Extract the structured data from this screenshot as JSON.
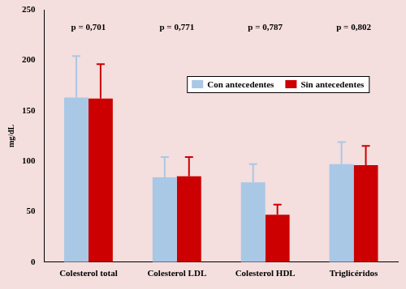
{
  "chart_data": {
    "type": "bar",
    "categories": [
      "Colesterol total",
      "Colesterol LDL",
      "Colesterol HDL",
      "Triglicéridos"
    ],
    "series": [
      {
        "name": "Con antecedentes",
        "color": "#a9c8e6",
        "values": [
          163,
          84,
          79,
          97
        ],
        "errors": [
          41,
          20,
          18,
          22
        ]
      },
      {
        "name": "Sin antecedentes",
        "color": "#cc0000",
        "values": [
          162,
          85,
          47,
          96
        ],
        "errors": [
          34,
          19,
          10,
          19
        ]
      }
    ],
    "y_label": "mg/dL",
    "ylim": [
      0,
      250
    ],
    "yticks": [
      0,
      50,
      100,
      150,
      200,
      250
    ],
    "grid": false,
    "legend": "top",
    "annotations": [
      {
        "category": "Colesterol total",
        "text": "p = 0,701"
      },
      {
        "category": "Colesterol LDL",
        "text": "p = 0,771"
      },
      {
        "category": "Colesterol HDL",
        "text": "p = 0,787"
      },
      {
        "category": "Triglicéridos",
        "text": "p = 0,802"
      }
    ]
  }
}
